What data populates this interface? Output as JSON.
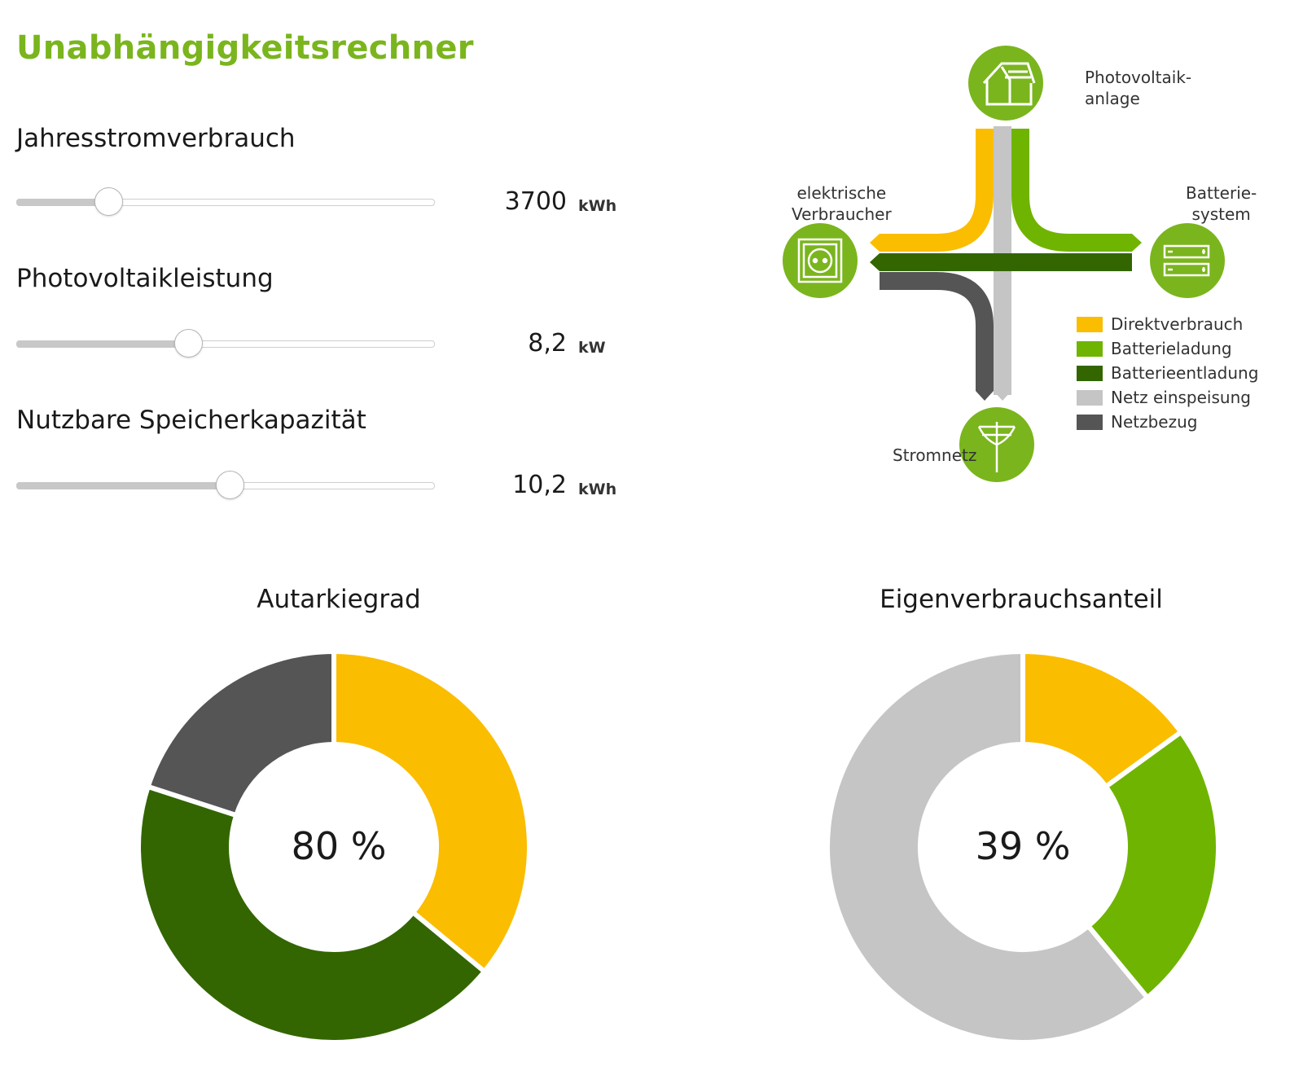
{
  "title": "Unabhängigkeitsrechner",
  "sliders": [
    {
      "label": "Jahresstromverbrauch",
      "value": "3700",
      "unit": "kWh",
      "position": 0.22
    },
    {
      "label": "Photovoltaikleistung",
      "value": "8,2",
      "unit": "kW",
      "position": 0.41
    },
    {
      "label": "Nutzbare Speicherkapazität",
      "value": "10,2",
      "unit": "kWh",
      "position": 0.51
    }
  ],
  "diagram": {
    "nodes": {
      "pv": "Photovoltaik-\nanlage",
      "consumer": "elektrische\nVerbraucher",
      "battery": "Batterie-\nsystem",
      "grid": "Stromnetz"
    },
    "legend": [
      {
        "label": "Direktverbrauch",
        "color": "#fbbd00"
      },
      {
        "label": "Batterieladung",
        "color": "#6fb400"
      },
      {
        "label": "Batterieentladung",
        "color": "#336600"
      },
      {
        "label": "Netz einspeisung",
        "color": "#c4c5c4"
      },
      {
        "label": "Netzbezug",
        "color": "#555555"
      }
    ],
    "icons": {
      "pv": "house-solar-icon",
      "consumer": "power-socket-icon",
      "battery": "battery-icon",
      "grid": "power-pole-icon"
    }
  },
  "autarkie": {
    "title": "Autarkiegrad",
    "center": "80 %",
    "segments": [
      {
        "name": "Direktverbrauch",
        "value": 36,
        "color": "#fbbd00"
      },
      {
        "name": "Batterieentladung",
        "value": 44,
        "color": "#336600"
      },
      {
        "name": "Netzbezug",
        "value": 20,
        "color": "#555555"
      }
    ]
  },
  "eigenverbrauch": {
    "title": "Eigenverbrauchsanteil",
    "center": "39 %",
    "segments": [
      {
        "name": "Direktverbrauch",
        "value": 15,
        "color": "#fbbd00"
      },
      {
        "name": "Batterieladung",
        "value": 24,
        "color": "#6fb400"
      },
      {
        "name": "Netz einspeisung",
        "value": 61,
        "color": "#c4c5c4"
      }
    ]
  }
}
